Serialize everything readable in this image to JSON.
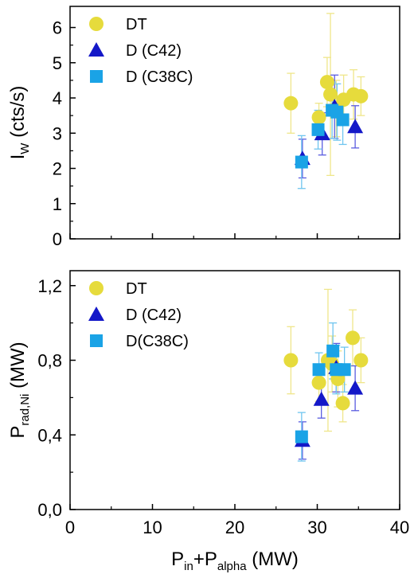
{
  "colors": {
    "DT": "#e6db3c",
    "D_C42": "#1418c8",
    "D_C38C": "#1aa3e6",
    "DT_err": "#efe68a",
    "D_C42_err": "#5a5ce0",
    "D_C38C_err": "#6fc5ef"
  },
  "chart_data": [
    {
      "type": "scatter",
      "ylabel_main": "I",
      "ylabel_sub": "W",
      "ylabel_unit": " (cts/s)",
      "xlim": [
        0,
        40
      ],
      "ylim": [
        0,
        6.6
      ],
      "yticks": [
        "0",
        "1",
        "2",
        "3",
        "4",
        "5",
        "6"
      ],
      "ytick_values": [
        0,
        1,
        2,
        3,
        4,
        5,
        6
      ],
      "xticks": [
        "0",
        "10",
        "20",
        "30",
        "40"
      ],
      "legend_position": "top-left",
      "series": [
        {
          "name": "DT",
          "marker": "circle",
          "points": [
            {
              "x": 26.8,
              "y": 3.85,
              "err": 0.85
            },
            {
              "x": 30.2,
              "y": 3.45,
              "err": 0.4
            },
            {
              "x": 31.2,
              "y": 4.45,
              "err": 0.7
            },
            {
              "x": 31.6,
              "y": 4.1,
              "err": 2.3
            },
            {
              "x": 32.3,
              "y": 3.7,
              "err": 0.8
            },
            {
              "x": 33.2,
              "y": 3.95,
              "err": 0.7
            },
            {
              "x": 34.4,
              "y": 4.1,
              "err": 0.7
            },
            {
              "x": 35.3,
              "y": 4.05,
              "err": 0.55
            }
          ]
        },
        {
          "name": "D (C42)",
          "marker": "triangle",
          "points": [
            {
              "x": 28.2,
              "y": 2.28,
              "err": 0.55
            },
            {
              "x": 30.6,
              "y": 2.98,
              "err": 0.6
            },
            {
              "x": 32.1,
              "y": 3.75,
              "err": 0.9
            },
            {
              "x": 34.6,
              "y": 3.18,
              "err": 0.6
            }
          ]
        },
        {
          "name": "D (C38C)",
          "marker": "square",
          "points": [
            {
              "x": 28.1,
              "y": 2.18,
              "err": 0.75
            },
            {
              "x": 30.1,
              "y": 3.1,
              "err": 0.55
            },
            {
              "x": 31.8,
              "y": 3.65,
              "err": 0.8
            },
            {
              "x": 32.4,
              "y": 3.6,
              "err": 0.8
            },
            {
              "x": 33.1,
              "y": 3.38,
              "err": 0.7
            }
          ]
        }
      ]
    },
    {
      "type": "scatter",
      "ylabel_main": "P",
      "ylabel_sub": "rad,Ni",
      "ylabel_unit": " (MW)",
      "xlabel_p1": "P",
      "xlabel_sub1": "in",
      "xlabel_mid": "+P",
      "xlabel_sub2": "alpha",
      "xlabel_unit": " (MW)",
      "xlim": [
        0,
        40
      ],
      "ylim": [
        0,
        1.28
      ],
      "yticks": [
        "0,0",
        "0,4",
        "0,8",
        "1,2"
      ],
      "ytick_values": [
        0,
        0.4,
        0.8,
        1.2
      ],
      "xticks": [
        "0",
        "10",
        "20",
        "30",
        "40"
      ],
      "legend_position": "top-left",
      "series": [
        {
          "name": "DT",
          "marker": "circle",
          "points": [
            {
              "x": 26.8,
              "y": 0.8,
              "err": 0.18
            },
            {
              "x": 30.2,
              "y": 0.68,
              "err": 0.1
            },
            {
              "x": 31.3,
              "y": 0.8,
              "err": 0.38
            },
            {
              "x": 31.8,
              "y": 0.78,
              "err": 0.15
            },
            {
              "x": 32.5,
              "y": 0.7,
              "err": 0.15
            },
            {
              "x": 33.1,
              "y": 0.57,
              "err": 0.1
            },
            {
              "x": 34.3,
              "y": 0.92,
              "err": 0.15
            },
            {
              "x": 35.3,
              "y": 0.8,
              "err": 0.12
            }
          ]
        },
        {
          "name": "D (C42)",
          "marker": "triangle",
          "points": [
            {
              "x": 28.2,
              "y": 0.37,
              "err": 0.1
            },
            {
              "x": 30.5,
              "y": 0.59,
              "err": 0.1
            },
            {
              "x": 32.3,
              "y": 0.76,
              "err": 0.13
            },
            {
              "x": 34.6,
              "y": 0.65,
              "err": 0.12
            }
          ]
        },
        {
          "name": "D(C38C)",
          "marker": "square",
          "points": [
            {
              "x": 28.1,
              "y": 0.39,
              "err": 0.13
            },
            {
              "x": 30.2,
              "y": 0.75,
              "err": 0.09
            },
            {
              "x": 31.9,
              "y": 0.85,
              "err": 0.15
            },
            {
              "x": 32.3,
              "y": 0.75,
              "err": 0.13
            },
            {
              "x": 33.3,
              "y": 0.75,
              "err": 0.12
            }
          ]
        }
      ]
    }
  ]
}
